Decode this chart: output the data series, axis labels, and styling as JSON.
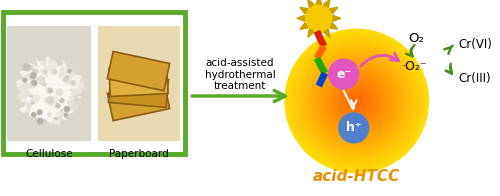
{
  "bg_color": "#ffffff",
  "green_border_color": "#5aaa2a",
  "arrow_color": "#5aaa2a",
  "title": "acid-HTCC",
  "title_color": "#e89000",
  "label_cellulose": "Cellulose",
  "label_paperboard": "Paperboard",
  "label_treatment": "acid-assisted\nhydrothermal\ntreatment",
  "label_e": "e⁻",
  "label_h": "h⁺",
  "label_O2": "O₂",
  "label_O2rad": "·O₂⁻",
  "label_CrVI": "Cr(VI)",
  "label_CrIII": "Cr(III)",
  "sphere_color_center": "#ffe060",
  "sphere_color_outer": "#f5a000",
  "e_circle_color": "#e055c0",
  "h_circle_color": "#5080cc",
  "sun_color": "#f5c800",
  "sun_ray_color": "#c8a000",
  "pink_arrow_color": "#e055c0",
  "green_label_color": "#4a8a1a",
  "lightning_colors": [
    "#dd2200",
    "#ff6600",
    "#22aa00",
    "#0044cc"
  ],
  "cellulose_bg": "#ddd8ce",
  "cellulose_blob": "#f0ede6",
  "paper_bg": "#e8d9b0",
  "paper_piece_colors": [
    "#d4a030",
    "#c89020",
    "#e0b040"
  ],
  "paper_piece_edge": "#8a6010"
}
